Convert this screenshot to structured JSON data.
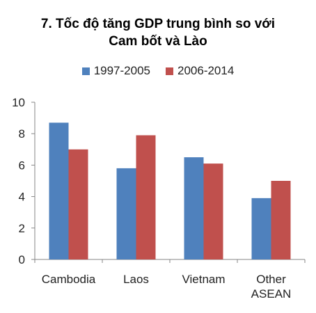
{
  "chart_data": {
    "type": "bar",
    "title_lines": [
      "7. Tốc độ tăng GDP trung bình so với",
      "Cam bốt và Lào"
    ],
    "categories": [
      [
        "Cambodia"
      ],
      [
        "Laos"
      ],
      [
        "Vietnam"
      ],
      [
        "Other",
        "ASEAN"
      ]
    ],
    "series": [
      {
        "name": "1997-2005",
        "color": "#4F81BD",
        "values": [
          8.7,
          5.8,
          6.5,
          3.9
        ]
      },
      {
        "name": "2006-2014",
        "color": "#C0504D",
        "values": [
          7.0,
          7.9,
          6.1,
          5.0
        ]
      }
    ],
    "ylim": [
      0,
      10
    ],
    "yticks": [
      0,
      2,
      4,
      6,
      8,
      10
    ],
    "grid": false,
    "legend_position": "top"
  }
}
